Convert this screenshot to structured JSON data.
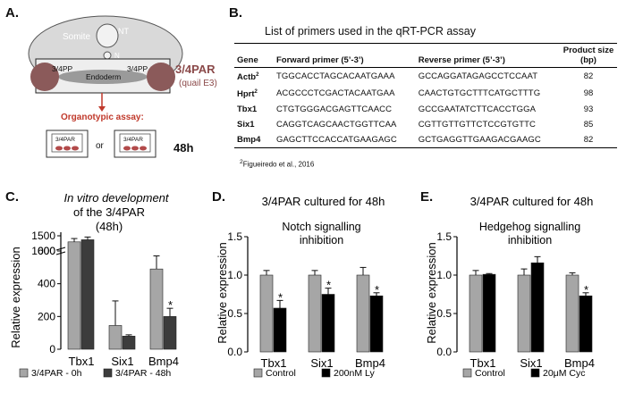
{
  "panels": {
    "A": {
      "letter": "A.",
      "labels": {
        "somite": "Somite",
        "nt": "NT",
        "n": "N",
        "pp_left": "3/4PP",
        "pp_right": "3/4PP",
        "endoderm": "Endoderm"
      },
      "par_label": "3/4PAR",
      "par_sub": "(quail E3)",
      "assay_label": "Organotypic assay:",
      "dish_left": "3/4PAR",
      "dish_right": "3/4PAR",
      "or": "or",
      "time": "48h",
      "colors": {
        "red": "#c0392b",
        "par": "#8b4a4a"
      }
    },
    "B": {
      "letter": "B.",
      "title": "List of primers used in the qRT-PCR assay",
      "headers": {
        "gene": "Gene",
        "forward": "Forward primer (5’-3’)",
        "reverse": "Reverse primer (5’-3’)",
        "product": "Product size (bp)"
      },
      "rows": [
        {
          "gene": "Actb",
          "sup": "2",
          "fwd": "TGGCACCTAGCACAATGAAA",
          "rev": "GCCAGGATAGAGCCTCCAAT",
          "size": "82"
        },
        {
          "gene": "Hprt",
          "sup": "2",
          "fwd": "ACGCCCTCGACTACAATGAA",
          "rev": "CAACTGTGCTTTCATGCTTTG",
          "size": "98"
        },
        {
          "gene": "Tbx1",
          "sup": "",
          "fwd": "CTGTGGGACGAGTTCAACC",
          "rev": "GCCGAATATCTTCACCTGGA",
          "size": "93"
        },
        {
          "gene": "Six1",
          "sup": "",
          "fwd": "CAGGTCAGCAACTGGTTCAA",
          "rev": "CGTTGTTGTTCTCCGTGTTC",
          "size": "85"
        },
        {
          "gene": "Bmp4",
          "sup": "",
          "fwd": "GAGCTTCCACCATGAAGAGC",
          "rev": "GCTGAGGTTGAAGACGAAGC",
          "size": "82"
        }
      ],
      "footnote_sup": "2",
      "footnote": "Figueiredo et al., 2016"
    },
    "C": {
      "letter": "C.",
      "title_line1": "In vitro development",
      "title_line2": "of the 3/4PAR",
      "title_line3": "(48h)"
    },
    "D": {
      "letter": "D.",
      "title_top": "3/4PAR cultured for 48h",
      "subtitle1": "Notch signalling",
      "subtitle2": "inhibition"
    },
    "E": {
      "letter": "E.",
      "title_top": "3/4PAR cultured for 48h",
      "subtitle1": "Hedgehog signalling",
      "subtitle2": "inhibition"
    }
  },
  "chart_data": [
    {
      "type": "bar",
      "panel": "C",
      "categories": [
        "Tbx1",
        "Six1",
        "Bmp4"
      ],
      "ylabel": "Relative expression",
      "axis_break": true,
      "yticks_lower": [
        "0",
        "200",
        "400",
        "600"
      ],
      "yticks_upper": [
        "1000",
        "1500"
      ],
      "series": [
        {
          "name": "3/4PAR - 0h",
          "color": "#a6a6a6",
          "values": [
            1300,
            145,
            490
          ],
          "errors": [
            110,
            150,
            80
          ]
        },
        {
          "name": "3/4PAR - 48h",
          "color": "#3c3c3c",
          "values": [
            1370,
            80,
            200
          ],
          "errors": [
            90,
            8,
            50
          ]
        }
      ],
      "significance": [
        {
          "category": "Bmp4",
          "series": "3/4PAR - 48h",
          "mark": "*"
        }
      ]
    },
    {
      "type": "bar",
      "panel": "D",
      "categories": [
        "Tbx1",
        "Six1",
        "Bmp4"
      ],
      "ylabel": "Relative expression",
      "ylim": [
        0,
        1.5
      ],
      "yticks": [
        "0.0",
        "0.5",
        "1.0",
        "1.5"
      ],
      "series": [
        {
          "name": "Control",
          "color": "#a6a6a6",
          "values": [
            1.0,
            1.0,
            1.0
          ],
          "errors": [
            0.06,
            0.06,
            0.1
          ]
        },
        {
          "name": "200nM Ly",
          "color": "#000000",
          "values": [
            0.57,
            0.75,
            0.73
          ],
          "errors": [
            0.1,
            0.08,
            0.04
          ]
        }
      ],
      "significance": [
        {
          "category": "Tbx1",
          "series": "200nM Ly",
          "mark": "*"
        },
        {
          "category": "Six1",
          "series": "200nM Ly",
          "mark": "*"
        },
        {
          "category": "Bmp4",
          "series": "200nM Ly",
          "mark": "*"
        }
      ]
    },
    {
      "type": "bar",
      "panel": "E",
      "categories": [
        "Tbx1",
        "Six1",
        "Bmp4"
      ],
      "ylabel": "Relative expression",
      "ylim": [
        0,
        1.5
      ],
      "yticks": [
        "0.0",
        "0.5",
        "1.0",
        "1.5"
      ],
      "series": [
        {
          "name": "Control",
          "color": "#a6a6a6",
          "values": [
            1.0,
            1.0,
            1.0
          ],
          "errors": [
            0.06,
            0.08,
            0.03
          ]
        },
        {
          "name": "20μM Cyc",
          "color": "#000000",
          "values": [
            1.01,
            1.16,
            0.73
          ],
          "errors": [
            0.01,
            0.08,
            0.04
          ]
        }
      ],
      "significance": [
        {
          "category": "Bmp4",
          "series": "20μM Cyc",
          "mark": "*"
        }
      ]
    }
  ]
}
